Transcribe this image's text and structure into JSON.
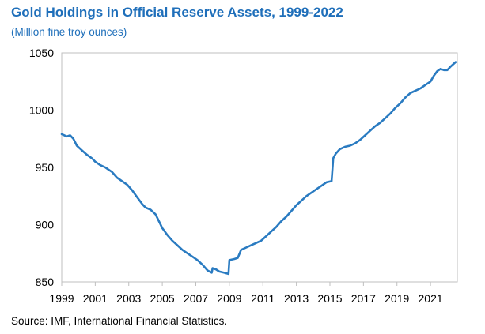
{
  "chart_data": {
    "type": "line",
    "title": "Gold Holdings in Official Reserve Assets, 1999-2022",
    "subtitle": "(Million fine troy ounces)",
    "source": "Source: IMF, International Financial Statistics.",
    "xlabel": "",
    "ylabel": "",
    "xlim": [
      1999,
      2022.6
    ],
    "ylim": [
      850,
      1050
    ],
    "y_ticks": [
      850,
      900,
      950,
      1000,
      1050
    ],
    "x_ticks": [
      "1999",
      "2001",
      "2003",
      "2005",
      "2007",
      "2009",
      "2011",
      "2013",
      "2015",
      "2017",
      "2019",
      "2021"
    ],
    "grid": false,
    "legend": "none",
    "line_color": "#2a7bc1",
    "series": [
      {
        "x": [
          1999.0,
          1999.3,
          1999.5,
          1999.7,
          1999.9,
          2000.2,
          2000.5,
          2000.8,
          2001.0,
          2001.3,
          2001.6,
          2001.8,
          2002.0,
          2002.3,
          2002.6,
          2002.9,
          2003.2,
          2003.5,
          2003.8,
          2004.0,
          2004.3,
          2004.6,
          2004.9,
          2005.0,
          2005.3,
          2005.6,
          2005.9,
          2006.2,
          2006.5,
          2006.8,
          2007.1,
          2007.4,
          2007.7,
          2007.95,
          2008.0,
          2008.2,
          2008.4,
          2008.7,
          2008.95,
          2009.0,
          2009.3,
          2009.5,
          2009.7,
          2010.0,
          2010.3,
          2010.6,
          2010.9,
          2011.2,
          2011.5,
          2011.8,
          2012.1,
          2012.4,
          2012.7,
          2013.0,
          2013.3,
          2013.6,
          2013.9,
          2014.2,
          2014.5,
          2014.8,
          2015.1,
          2015.2,
          2015.35,
          2015.6,
          2015.9,
          2016.2,
          2016.5,
          2016.8,
          2017.1,
          2017.4,
          2017.7,
          2018.0,
          2018.3,
          2018.6,
          2018.9,
          2019.2,
          2019.5,
          2019.8,
          2020.1,
          2020.4,
          2020.7,
          2021.0,
          2021.2,
          2021.4,
          2021.6,
          2021.8,
          2022.0,
          2022.2,
          2022.5
        ],
        "y": [
          979,
          977,
          978,
          975,
          969,
          965,
          961,
          958,
          955,
          952,
          950,
          948,
          946,
          941,
          938,
          935,
          930,
          924,
          918,
          915,
          913,
          909,
          900,
          897,
          891,
          886,
          882,
          878,
          875,
          872,
          869,
          865,
          860,
          858,
          862,
          861,
          859,
          858,
          857,
          869,
          870,
          871,
          878,
          880,
          882,
          884,
          886,
          890,
          894,
          898,
          903,
          907,
          912,
          917,
          921,
          925,
          928,
          931,
          934,
          937,
          938,
          958,
          962,
          966,
          968,
          969,
          971,
          974,
          978,
          982,
          986,
          989,
          993,
          997,
          1002,
          1006,
          1011,
          1015,
          1017,
          1019,
          1022,
          1025,
          1030,
          1034,
          1036,
          1035,
          1035,
          1038,
          1042
        ]
      }
    ]
  }
}
